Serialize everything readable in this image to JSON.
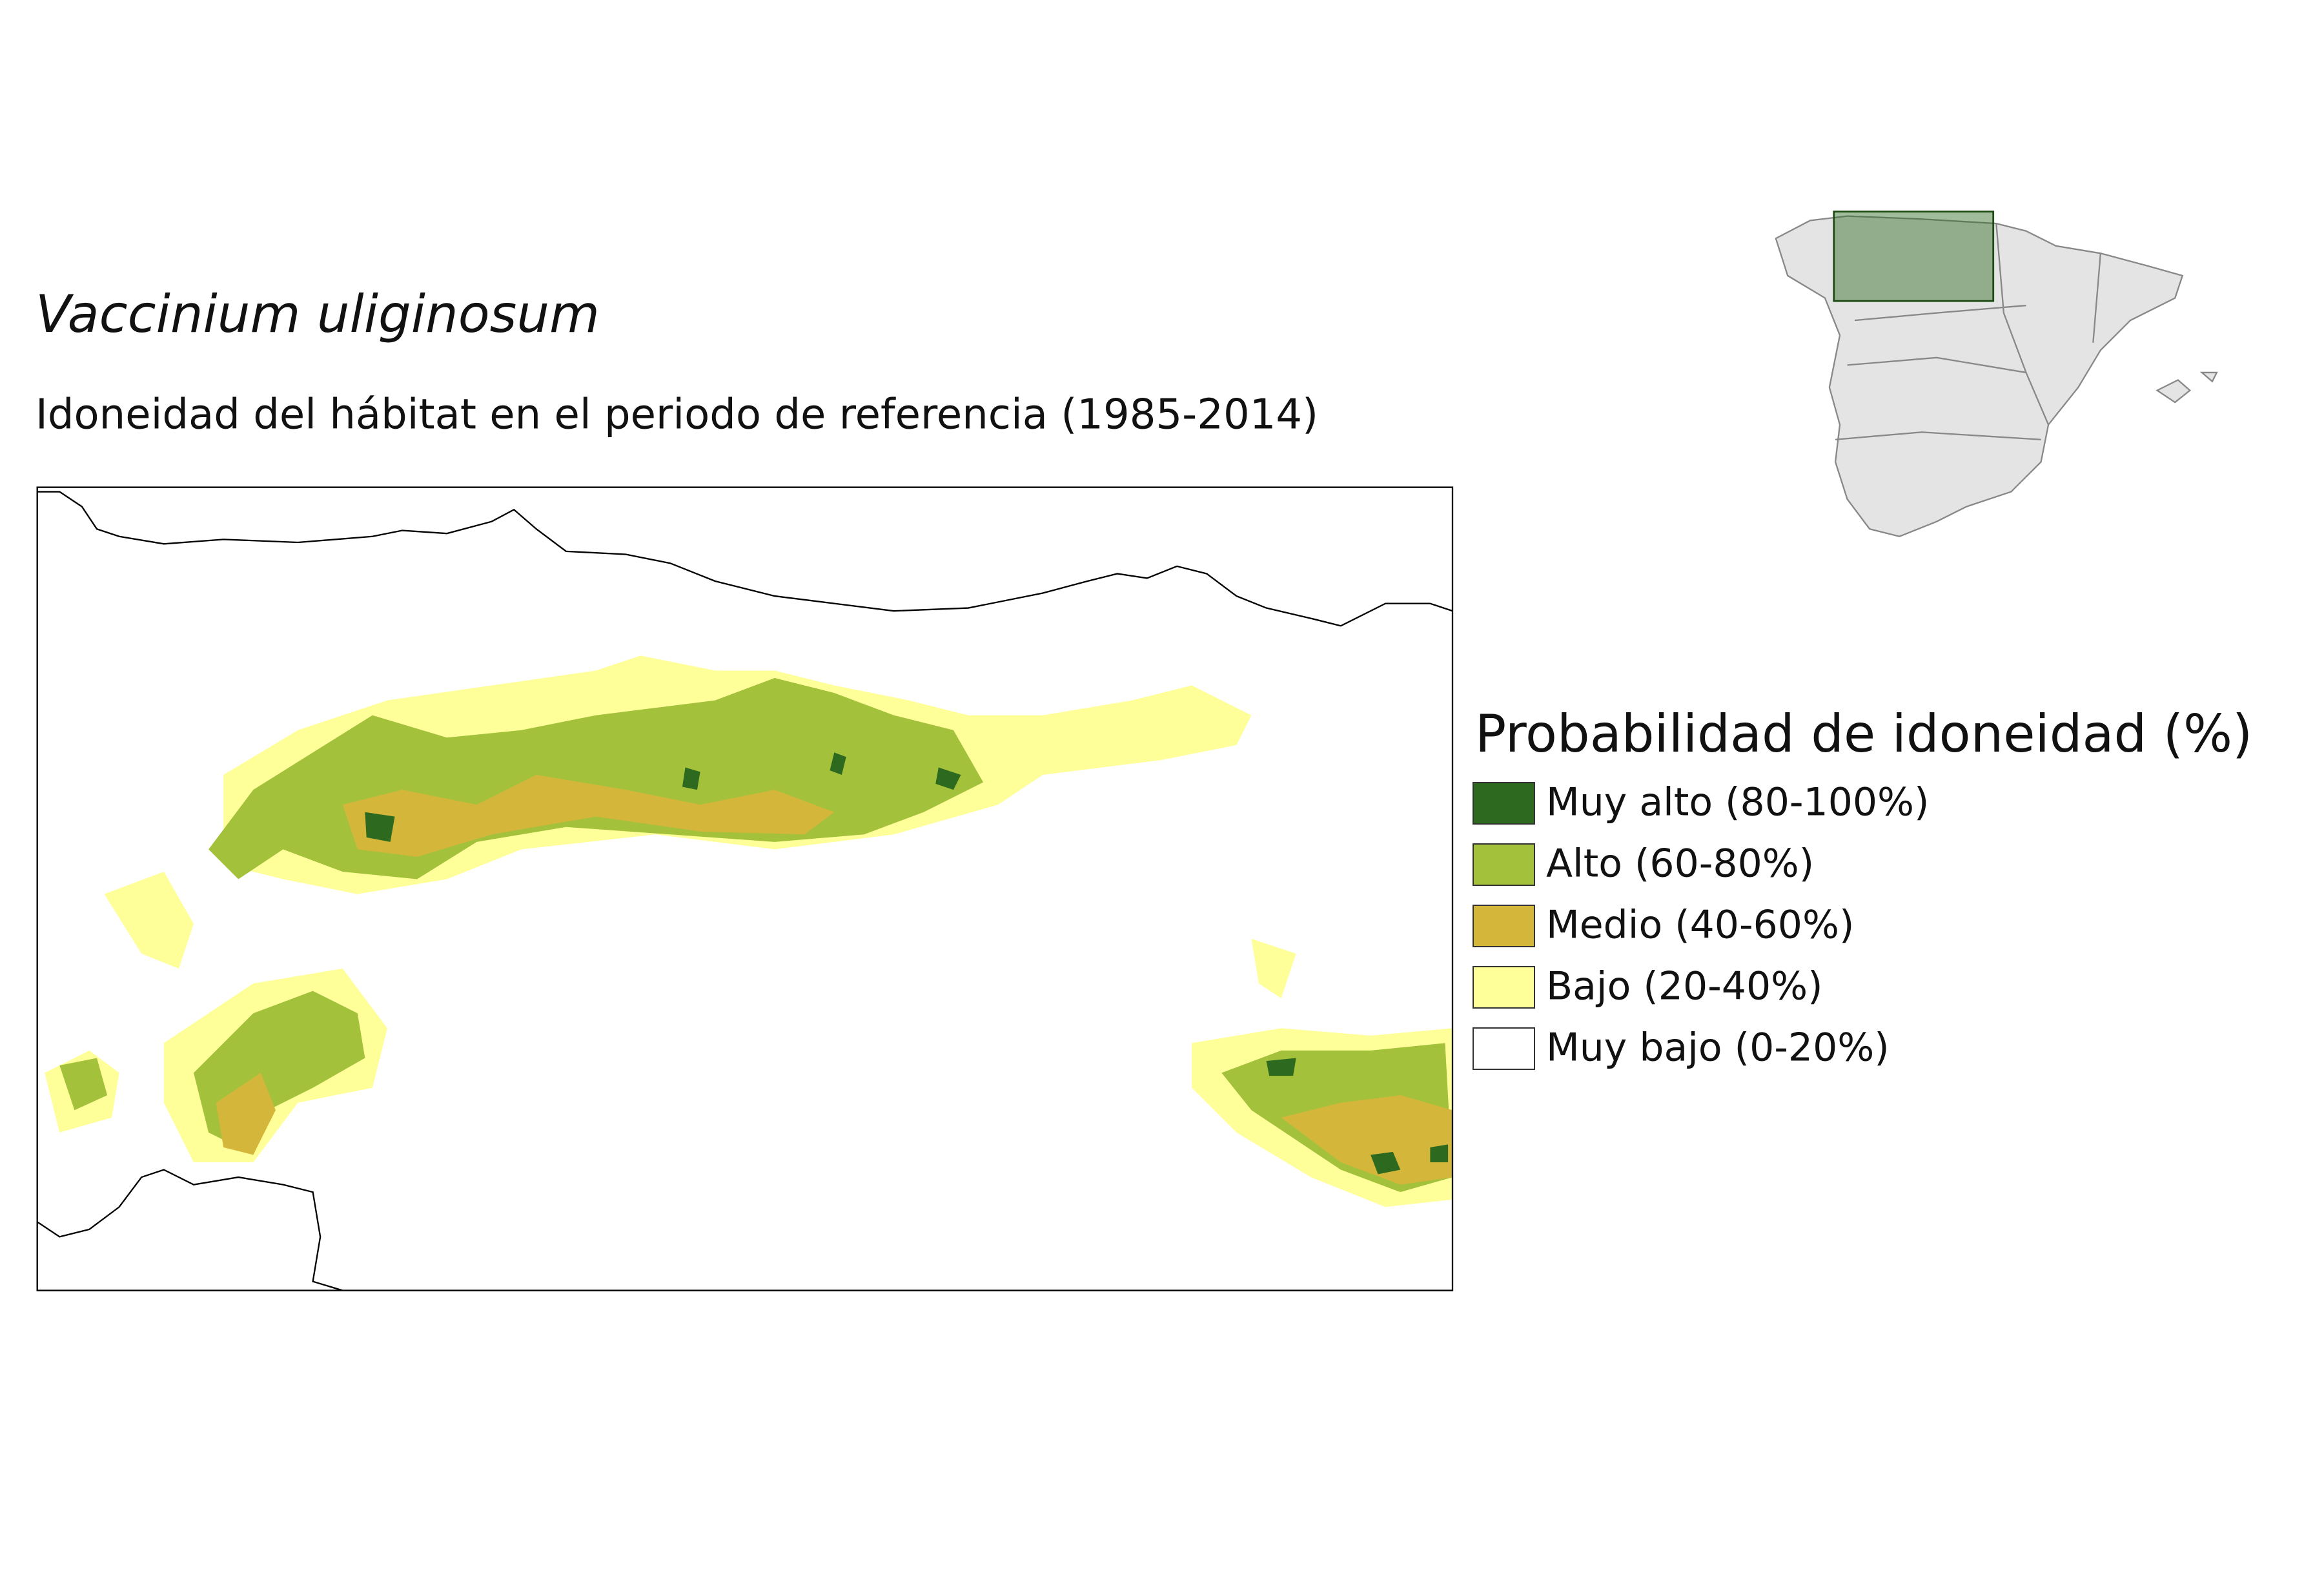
{
  "title": "Vaccinium uliginosum",
  "subtitle": "Idoneidad del hábitat en el periodo de referencia (1985-2014)",
  "legend": {
    "title": "Probabilidad de idoneidad (%)",
    "items": [
      {
        "label": "Muy alto (80-100%)",
        "color": "#2d6a1f"
      },
      {
        "label": "Alto (60-80%)",
        "color": "#a3c13a"
      },
      {
        "label": "Medio (40-60%)",
        "color": "#d4b73a"
      },
      {
        "label": "Bajo (20-40%)",
        "color": "#ffff99"
      },
      {
        "label": "Muy bajo (0-20%)",
        "color": "#ffffff"
      }
    ]
  }
}
